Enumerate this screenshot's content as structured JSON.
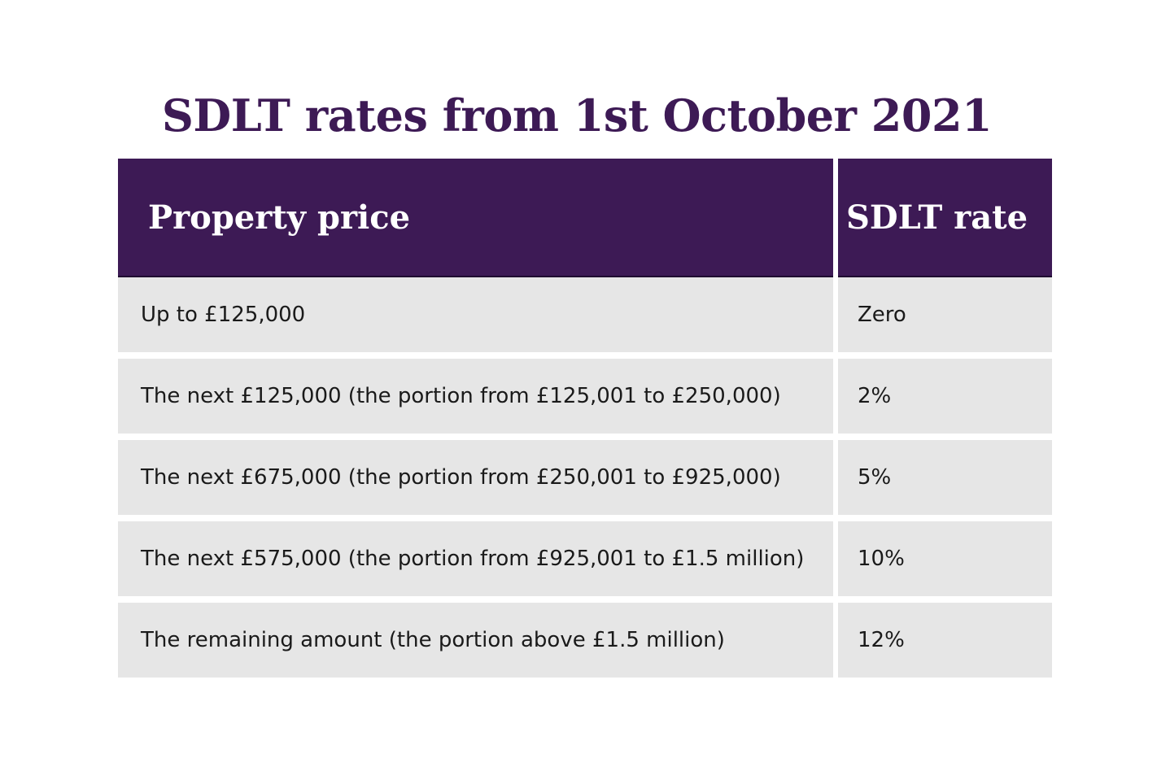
{
  "title": "SDLT rates from 1st October 2021",
  "table": {
    "headers": [
      "Property price",
      "SDLT rate"
    ],
    "rows": [
      {
        "price": "Up to £125,000",
        "rate": "Zero"
      },
      {
        "price": "The next £125,000 (the portion from £125,001 to £250,000)",
        "rate": "2%"
      },
      {
        "price": "The next £675,000 (the portion from £250,001 to £925,000)",
        "rate": "5%"
      },
      {
        "price": "The next £575,000 (the portion from £925,001 to £1.5 million)",
        "rate": "10%"
      },
      {
        "price": "The remaining amount (the portion above £1.5 million)",
        "rate": "12%"
      }
    ]
  },
  "colors": {
    "header_bg": "#3d1a55",
    "title_text": "#3d1a55",
    "row_bg": "#e6e6e6"
  }
}
